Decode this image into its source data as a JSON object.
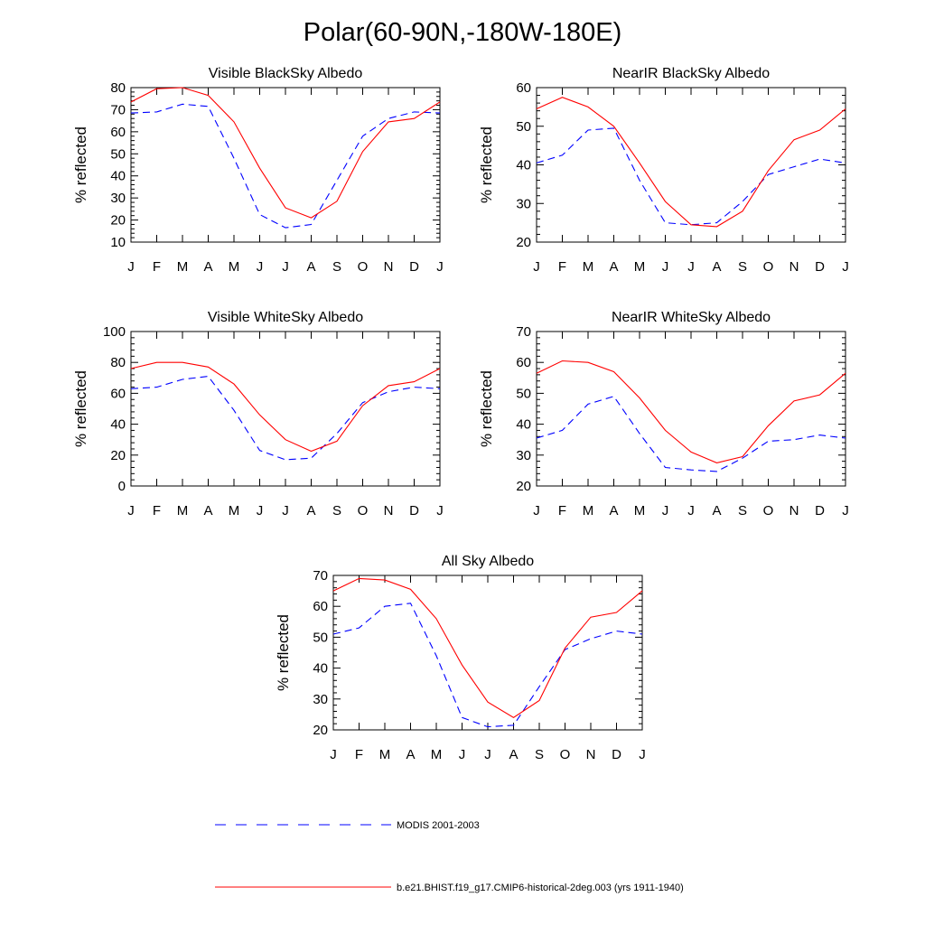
{
  "title": "Polar(60-90N,-180W-180E)",
  "chart_data": [
    {
      "type": "line",
      "title": "Visible BlackSky Albedo",
      "ylabel": "% reflected",
      "categories": [
        "J",
        "F",
        "M",
        "A",
        "M",
        "J",
        "J",
        "A",
        "S",
        "O",
        "N",
        "D",
        "J"
      ],
      "ylim": [
        10,
        80
      ],
      "yticks": [
        10,
        20,
        30,
        40,
        50,
        60,
        70,
        80
      ],
      "series": [
        {
          "name": "MODIS 2001-2003",
          "values": [
            68.5,
            69,
            72.5,
            71.5,
            48,
            22.5,
            16.5,
            18,
            38,
            58,
            66,
            69,
            68.5
          ]
        },
        {
          "name": "b.e21.BHIST.f19_g17.CMIP6-historical-2deg.003 (yrs 1911-1940)",
          "values": [
            73.5,
            79.5,
            80,
            76.5,
            64.5,
            43.5,
            25.5,
            21,
            28.5,
            51,
            64.5,
            66,
            73.5
          ]
        }
      ]
    },
    {
      "type": "line",
      "title": "NearIR BlackSky Albedo",
      "ylabel": "% reflected",
      "categories": [
        "J",
        "F",
        "M",
        "A",
        "M",
        "J",
        "J",
        "A",
        "S",
        "O",
        "N",
        "D",
        "J"
      ],
      "ylim": [
        20,
        60
      ],
      "yticks": [
        20,
        30,
        40,
        50,
        60
      ],
      "series": [
        {
          "name": "MODIS 2001-2003",
          "values": [
            40.5,
            42.5,
            49,
            49.5,
            36,
            25,
            24.5,
            25,
            30.5,
            37.5,
            39.5,
            41.5,
            40.5
          ]
        },
        {
          "name": "b.e21.BHIST.f19_g17.CMIP6-historical-2deg.003 (yrs 1911-1940)",
          "values": [
            54.5,
            57.5,
            55,
            50,
            40.5,
            30.5,
            24.5,
            24,
            28,
            38.5,
            46.5,
            49,
            54.5
          ]
        }
      ]
    },
    {
      "type": "line",
      "title": "Visible WhiteSky Albedo",
      "ylabel": "% reflected",
      "categories": [
        "J",
        "F",
        "M",
        "A",
        "M",
        "J",
        "J",
        "A",
        "S",
        "O",
        "N",
        "D",
        "J"
      ],
      "ylim": [
        0,
        100
      ],
      "yticks": [
        0,
        20,
        40,
        60,
        80,
        100
      ],
      "series": [
        {
          "name": "MODIS 2001-2003",
          "values": [
            63,
            64,
            69,
            71,
            49,
            23,
            17,
            18,
            34,
            54,
            61,
            64,
            63
          ]
        },
        {
          "name": "b.e21.BHIST.f19_g17.CMIP6-historical-2deg.003 (yrs 1911-1940)",
          "values": [
            76,
            80,
            80,
            77,
            66,
            46,
            30,
            22.5,
            29,
            52,
            65,
            67.5,
            76
          ]
        }
      ]
    },
    {
      "type": "line",
      "title": "NearIR WhiteSky Albedo",
      "ylabel": "% reflected",
      "categories": [
        "J",
        "F",
        "M",
        "A",
        "M",
        "J",
        "J",
        "A",
        "S",
        "O",
        "N",
        "D",
        "J"
      ],
      "ylim": [
        20,
        70
      ],
      "yticks": [
        20,
        30,
        40,
        50,
        60,
        70
      ],
      "series": [
        {
          "name": "MODIS 2001-2003",
          "values": [
            35.5,
            38,
            46.5,
            49,
            37,
            26,
            25.2,
            24.7,
            29,
            34.5,
            35,
            36.5,
            35.5
          ]
        },
        {
          "name": "b.e21.BHIST.f19_g17.CMIP6-historical-2deg.003 (yrs 1911-1940)",
          "values": [
            56.5,
            60.5,
            60,
            57,
            48.5,
            38,
            31,
            27.5,
            29.5,
            39.5,
            47.5,
            49.5,
            56.5
          ]
        }
      ]
    },
    {
      "type": "line",
      "title": "All Sky Albedo",
      "ylabel": "% reflected",
      "categories": [
        "J",
        "F",
        "M",
        "A",
        "M",
        "J",
        "J",
        "A",
        "S",
        "O",
        "N",
        "D",
        "J"
      ],
      "ylim": [
        20,
        70
      ],
      "yticks": [
        20,
        30,
        40,
        50,
        60,
        70
      ],
      "series": [
        {
          "name": "MODIS 2001-2003",
          "values": [
            51,
            53,
            60,
            61,
            44,
            24,
            21,
            21.5,
            34,
            46,
            49.5,
            52,
            51
          ]
        },
        {
          "name": "b.e21.BHIST.f19_g17.CMIP6-historical-2deg.003 (yrs 1911-1940)",
          "values": [
            65,
            69,
            68.5,
            65.5,
            56,
            41,
            29,
            24,
            29.5,
            46.5,
            56.5,
            58,
            65
          ]
        }
      ]
    }
  ],
  "legend": [
    {
      "label": "MODIS 2001-2003",
      "color": "#0000ff",
      "style": "dashed"
    },
    {
      "label": "b.e21.BHIST.f19_g17.CMIP6-historical-2deg.003 (yrs 1911-1940)",
      "color": "#ff0000",
      "style": "solid"
    }
  ],
  "colors": {
    "modis": "#0000ff",
    "model": "#ff0000"
  }
}
